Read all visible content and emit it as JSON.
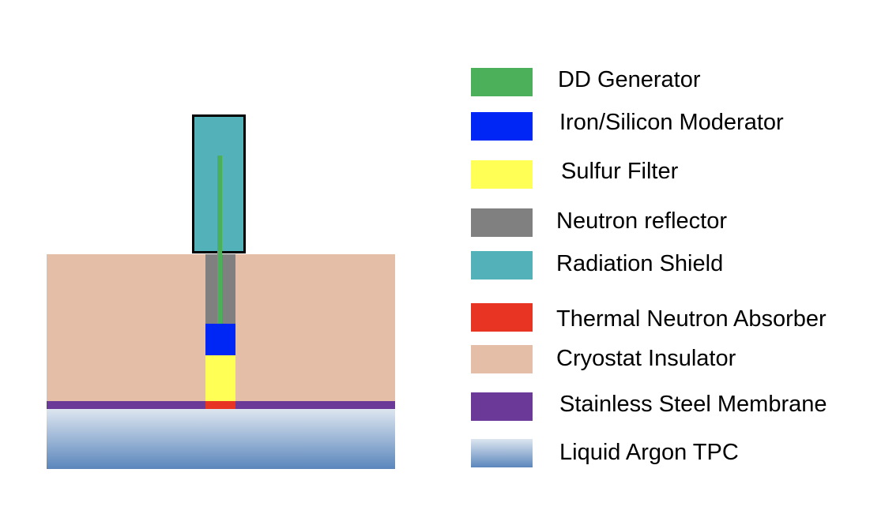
{
  "colors": {
    "dd_generator": "#4caf5a",
    "moderator": "#0026f5",
    "sulfur_filter": "#ffff55",
    "neutron_reflector": "#808080",
    "radiation_shield": "#52b1b9",
    "thermal_absorber": "#e83523",
    "cryostat_insulator": "#e4bea6",
    "stainless_membrane": "#6b3a98",
    "liquid_argon_top": "#dde6f0",
    "liquid_argon_bottom": "#5b86bc"
  },
  "legend": [
    {
      "key": "dd_generator",
      "label": "DD Generator"
    },
    {
      "key": "moderator",
      "label": "Iron/Silicon Moderator"
    },
    {
      "key": "sulfur_filter",
      "label": "Sulfur Filter"
    },
    {
      "key": "neutron_reflector",
      "label": "Neutron reflector"
    },
    {
      "key": "radiation_shield",
      "label": "Radiation Shield"
    },
    {
      "key": "thermal_absorber",
      "label": "Thermal Neutron Absorber"
    },
    {
      "key": "cryostat_insulator",
      "label": "Cryostat Insulator"
    },
    {
      "key": "stainless_membrane",
      "label": "Stainless Steel Membrane"
    },
    {
      "key": "liquid_argon",
      "label": "Liquid Argon TPC"
    }
  ]
}
